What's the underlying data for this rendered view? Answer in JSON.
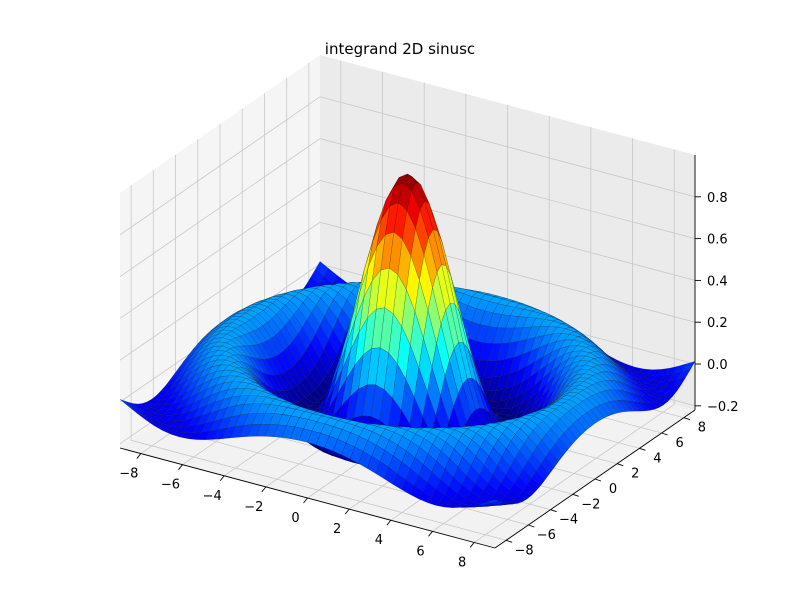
{
  "chart_data": {
    "type": "surface3d",
    "title": "integrand 2D sinusc",
    "function": "sin(sqrt(x^2 + y^2)) / sqrt(x^2 + y^2)",
    "x_range": [
      -9,
      9
    ],
    "y_range": [
      -9,
      9
    ],
    "z_range": [
      -0.22,
      1.0
    ],
    "x_ticks": [
      "−8",
      "−6",
      "−4",
      "−2",
      "0",
      "2",
      "4",
      "6",
      "8"
    ],
    "y_ticks": [
      "−8",
      "−6",
      "−4",
      "−2",
      "0",
      "2",
      "4",
      "6",
      "8"
    ],
    "z_ticks": [
      "−0.2",
      "0.0",
      "0.2",
      "0.4",
      "0.6",
      "0.8"
    ],
    "z_tick_values": [
      -0.2,
      0.0,
      0.2,
      0.4,
      0.6,
      0.8
    ],
    "x_tick_values": [
      -8,
      -6,
      -4,
      -2,
      0,
      2,
      4,
      6,
      8
    ],
    "y_tick_values": [
      -8,
      -6,
      -4,
      -2,
      0,
      2,
      4,
      6,
      8
    ],
    "colormap": "jet",
    "grid": true,
    "contour_lines": true,
    "legend": "none"
  }
}
